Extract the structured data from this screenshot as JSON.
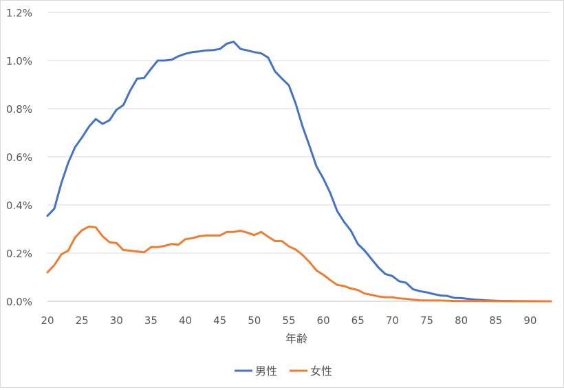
{
  "chart_data": {
    "type": "line",
    "title": "",
    "xlabel": "年齢",
    "ylabel": "",
    "xlim": [
      20,
      93
    ],
    "ylim": [
      0,
      1.2
    ],
    "x_ticks": [
      20,
      25,
      30,
      35,
      40,
      45,
      50,
      55,
      60,
      65,
      70,
      75,
      80,
      85,
      90
    ],
    "y_ticks": [
      0,
      0.2,
      0.4,
      0.6,
      0.8,
      1.0,
      1.2
    ],
    "y_tick_labels": [
      "0.0%",
      "0.2%",
      "0.4%",
      "0.6%",
      "0.8%",
      "1.0%",
      "1.2%"
    ],
    "grid": "horizontal",
    "legend_position": "bottom",
    "x": [
      20,
      21,
      22,
      23,
      24,
      25,
      26,
      27,
      28,
      29,
      30,
      31,
      32,
      33,
      34,
      35,
      36,
      37,
      38,
      39,
      40,
      41,
      42,
      43,
      44,
      45,
      46,
      47,
      48,
      49,
      50,
      51,
      52,
      53,
      54,
      55,
      56,
      57,
      58,
      59,
      60,
      61,
      62,
      63,
      64,
      65,
      66,
      67,
      68,
      69,
      70,
      71,
      72,
      73,
      74,
      75,
      76,
      77,
      78,
      79,
      80,
      81,
      82,
      83,
      84,
      85,
      86,
      87,
      88,
      89,
      90,
      91,
      92,
      93
    ],
    "series": [
      {
        "name": "男性",
        "color": "#4472c4",
        "values": [
          0.355,
          0.385,
          0.49,
          0.575,
          0.64,
          0.68,
          0.725,
          0.757,
          0.737,
          0.752,
          0.795,
          0.815,
          0.875,
          0.925,
          0.927,
          0.965,
          1.0,
          1.0,
          1.003,
          1.018,
          1.028,
          1.035,
          1.038,
          1.042,
          1.043,
          1.048,
          1.07,
          1.078,
          1.048,
          1.042,
          1.035,
          1.03,
          1.012,
          0.955,
          0.925,
          0.897,
          0.82,
          0.725,
          0.645,
          0.56,
          0.51,
          0.45,
          0.375,
          0.33,
          0.293,
          0.238,
          0.21,
          0.175,
          0.14,
          0.113,
          0.105,
          0.083,
          0.077,
          0.05,
          0.042,
          0.037,
          0.03,
          0.024,
          0.022,
          0.014,
          0.013,
          0.01,
          0.007,
          0.005,
          0.003,
          0.002,
          0.001,
          0.001,
          0.0005,
          0.0005,
          0.0003,
          0.0002,
          0.0001,
          0.0001
        ]
      },
      {
        "name": "女性",
        "color": "#ed7d31",
        "values": [
          0.12,
          0.15,
          0.195,
          0.21,
          0.265,
          0.295,
          0.31,
          0.307,
          0.27,
          0.245,
          0.242,
          0.213,
          0.21,
          0.207,
          0.203,
          0.225,
          0.225,
          0.23,
          0.238,
          0.235,
          0.258,
          0.262,
          0.27,
          0.273,
          0.273,
          0.273,
          0.288,
          0.288,
          0.293,
          0.285,
          0.275,
          0.288,
          0.268,
          0.25,
          0.25,
          0.228,
          0.215,
          0.192,
          0.163,
          0.128,
          0.11,
          0.088,
          0.068,
          0.063,
          0.053,
          0.047,
          0.032,
          0.027,
          0.02,
          0.017,
          0.017,
          0.012,
          0.01,
          0.007,
          0.004,
          0.003,
          0.003,
          0.003,
          0.002,
          0.001,
          0.001,
          0.001,
          0.001,
          0.0005,
          0.0005,
          0.0003,
          0.0002,
          0.0001,
          0.0001,
          0.0001,
          0.0001,
          0.0,
          0.0,
          0.0
        ]
      }
    ]
  }
}
